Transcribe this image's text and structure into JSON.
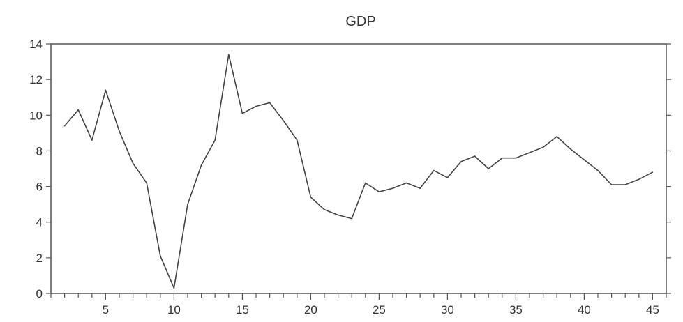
{
  "chart_data": {
    "type": "line",
    "title": "GDP",
    "xlabel": "",
    "ylabel": "",
    "xlim": [
      1,
      46
    ],
    "ylim": [
      0,
      14
    ],
    "x_ticks": [
      5,
      10,
      15,
      20,
      25,
      30,
      35,
      40,
      45
    ],
    "y_ticks": [
      0,
      2,
      4,
      6,
      8,
      10,
      12,
      14
    ],
    "grid": false,
    "legend": "none",
    "series": [
      {
        "x": [
          2,
          3,
          4,
          5,
          6,
          7,
          8,
          9,
          10,
          11,
          12,
          13,
          14,
          15,
          16,
          17,
          18,
          19,
          20,
          21,
          22,
          23,
          24,
          25,
          26,
          27,
          28,
          29,
          30,
          31,
          32,
          33,
          34,
          35,
          36,
          37,
          38,
          39,
          40,
          41,
          42,
          43,
          44,
          45
        ],
        "values": [
          9.4,
          10.3,
          8.6,
          11.4,
          9.1,
          7.3,
          6.2,
          2.1,
          0.3,
          5.0,
          7.2,
          8.6,
          13.4,
          10.1,
          10.5,
          10.7,
          9.7,
          8.6,
          5.4,
          4.7,
          4.4,
          4.2,
          6.2,
          5.7,
          5.9,
          6.2,
          5.9,
          6.9,
          6.5,
          7.4,
          7.7,
          7.0,
          7.6,
          7.6,
          7.9,
          8.2,
          8.8,
          8.1,
          7.5,
          6.9,
          6.1,
          6.1,
          6.4,
          6.8
        ]
      }
    ]
  }
}
